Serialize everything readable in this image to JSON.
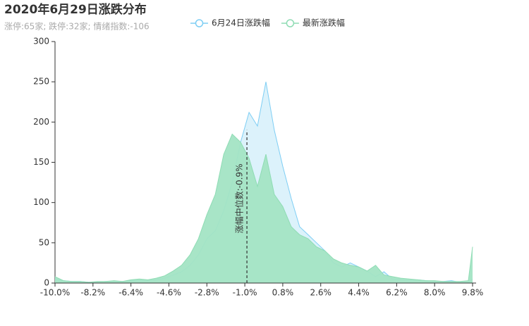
{
  "chart_data": {
    "type": "area",
    "title": "2020年6月29日涨跌分布",
    "subtitle": "涨停:65家; 跌停:32家; 情绪指数:-106",
    "x": [
      -10,
      -9.6,
      -9.2,
      -8.8,
      -8.4,
      -8.0,
      -7.6,
      -7.2,
      -6.8,
      -6.4,
      -6.0,
      -5.6,
      -5.2,
      -4.8,
      -4.4,
      -4.0,
      -3.6,
      -3.2,
      -2.8,
      -2.4,
      -2.0,
      -1.6,
      -1.2,
      -0.8,
      -0.4,
      0,
      0.4,
      0.8,
      1.2,
      1.6,
      2.0,
      2.4,
      2.8,
      3.2,
      3.6,
      4.0,
      4.4,
      4.8,
      5.2,
      5.6,
      6.0,
      6.4,
      6.8,
      7.2,
      7.6,
      8.0,
      8.4,
      8.8,
      9.2,
      9.6,
      9.8
    ],
    "series": [
      {
        "name": "6月24日涨跌幅",
        "color": "#7ecef4",
        "fill": "#dcf2fb",
        "values": [
          5,
          3,
          2,
          2,
          1,
          1,
          2,
          2,
          2,
          3,
          3,
          3,
          4,
          6,
          10,
          14,
          22,
          35,
          55,
          65,
          90,
          125,
          175,
          212,
          195,
          250,
          190,
          145,
          105,
          70,
          60,
          50,
          40,
          25,
          20,
          25,
          20,
          15,
          8,
          14,
          5,
          4,
          3,
          4,
          3,
          2,
          2,
          3,
          1,
          1,
          5
        ]
      },
      {
        "name": "最新涨跌幅",
        "color": "#8fdcb4",
        "fill": "#a3e4c4",
        "values": [
          8,
          3,
          2,
          2,
          1,
          2,
          2,
          3,
          2,
          4,
          5,
          4,
          6,
          9,
          15,
          22,
          35,
          55,
          85,
          110,
          160,
          185,
          175,
          155,
          120,
          160,
          110,
          95,
          70,
          60,
          55,
          45,
          40,
          30,
          25,
          22,
          20,
          15,
          22,
          10,
          8,
          6,
          5,
          4,
          3,
          3,
          2,
          2,
          2,
          3,
          45
        ]
      }
    ],
    "median": {
      "value": -0.9,
      "label": "涨幅中位数:-0.9%"
    },
    "xlim": [
      -10,
      9.8
    ],
    "xticks": [
      {
        "value": -10,
        "label": "-10.0%"
      },
      {
        "value": -8.2,
        "label": "-8.2%"
      },
      {
        "value": -6.4,
        "label": "-6.4%"
      },
      {
        "value": -4.6,
        "label": "-4.6%"
      },
      {
        "value": -2.8,
        "label": "-2.8%"
      },
      {
        "value": -1.0,
        "label": "-1.0%"
      },
      {
        "value": 0.8,
        "label": "0.8%"
      },
      {
        "value": 2.6,
        "label": "2.6%"
      },
      {
        "value": 4.4,
        "label": "4.4%"
      },
      {
        "value": 6.2,
        "label": "6.2%"
      },
      {
        "value": 8.0,
        "label": "8.0%"
      },
      {
        "value": 9.8,
        "label": "9.8%"
      }
    ],
    "ylim": [
      0,
      300
    ],
    "yticks": [
      0,
      50,
      100,
      150,
      200,
      250,
      300
    ],
    "grid": false
  }
}
